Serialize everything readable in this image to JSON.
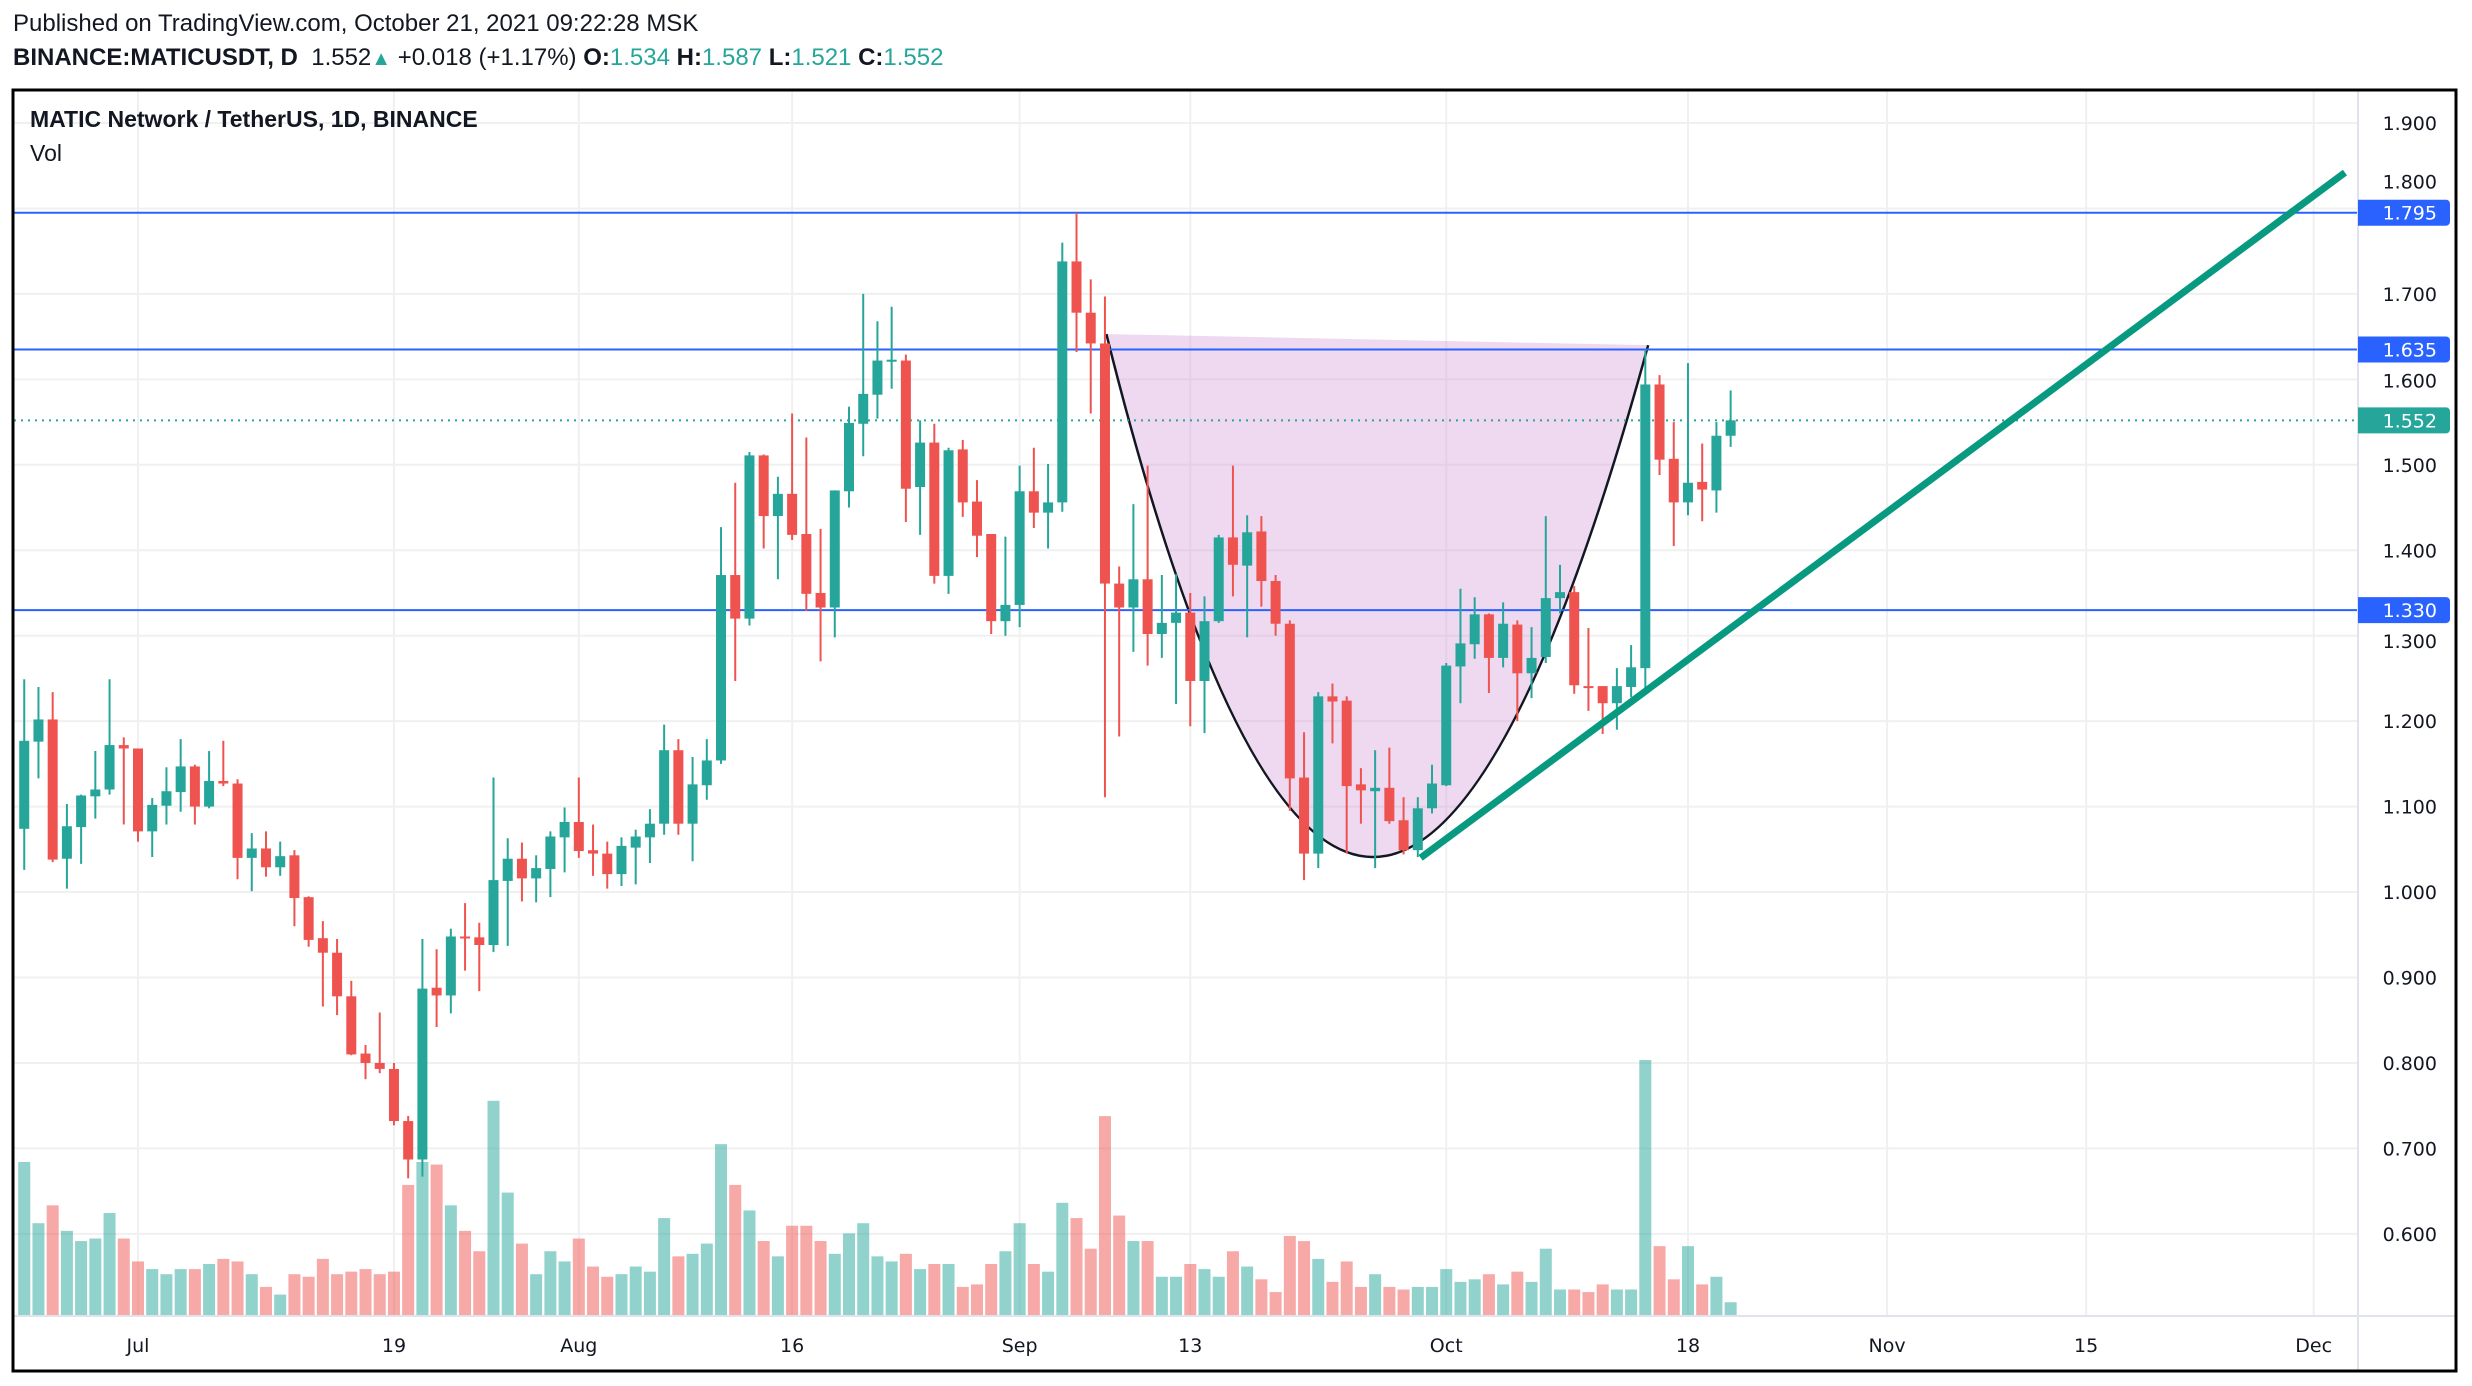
{
  "header": {
    "published": "Published on TradingView.com, October 21, 2021 09:22:28 MSK",
    "symbol": "BINANCE:MATICUSDT, D",
    "last": "1.552",
    "change": "+0.018 (+1.17%)",
    "o_label": "O:",
    "o": "1.534",
    "h_label": "H:",
    "h": "1.587",
    "l_label": "L:",
    "l": "1.521",
    "c_label": "C:",
    "c": "1.552",
    "up_icon": "triangle-up-icon"
  },
  "legend": {
    "title": "MATIC Network / TetherUS, 1D, BINANCE",
    "volume": "Vol"
  },
  "colors": {
    "up": "#26a69a",
    "down": "#ef5350",
    "level": "#2962ff",
    "trendline": "#089981",
    "cup_fill": "#ce93d8",
    "grid": "#f0f0f0"
  },
  "chart_data": {
    "type": "candlestick",
    "title": "MATIC Network / TetherUS, 1D, BINANCE",
    "start_date": "2021-06-23",
    "interval": "1D",
    "columns": [
      "open",
      "high",
      "low",
      "close",
      "volume_relative"
    ],
    "ylim": [
      0.5,
      1.95
    ],
    "y_ticks": [
      "1.900",
      "1.800",
      "1.700",
      "1.600",
      "1.500",
      "1.400",
      "1.300",
      "1.200",
      "1.100",
      "1.000",
      "0.900",
      "0.800",
      "0.700",
      "0.600"
    ],
    "x_ticks": [
      {
        "day": 0,
        "label": "Jul"
      },
      {
        "day": 18,
        "label": "19"
      },
      {
        "day": 31,
        "label": "Aug"
      },
      {
        "day": 46,
        "label": "16"
      },
      {
        "day": 62,
        "label": "Sep"
      },
      {
        "day": 74,
        "label": "13"
      },
      {
        "day": 92,
        "label": "Oct"
      },
      {
        "day": 109,
        "label": "18"
      },
      {
        "day": 123,
        "label": "Nov"
      },
      {
        "day": 137,
        "label": "15"
      },
      {
        "day": 153,
        "label": "Dec"
      }
    ],
    "first_day_offset": -8,
    "candles": [
      [
        1.074,
        1.249,
        1.026,
        1.177,
        60
      ],
      [
        1.176,
        1.24,
        1.133,
        1.202,
        36
      ],
      [
        1.202,
        1.234,
        1.035,
        1.038,
        43
      ],
      [
        1.039,
        1.103,
        1.004,
        1.077,
        33
      ],
      [
        1.076,
        1.114,
        1.033,
        1.113,
        29
      ],
      [
        1.112,
        1.165,
        1.086,
        1.12,
        30
      ],
      [
        1.12,
        1.249,
        1.114,
        1.172,
        40
      ],
      [
        1.172,
        1.181,
        1.079,
        1.168,
        30
      ],
      [
        1.168,
        1.168,
        1.059,
        1.071,
        21
      ],
      [
        1.071,
        1.11,
        1.041,
        1.102,
        18
      ],
      [
        1.101,
        1.146,
        1.079,
        1.118,
        16
      ],
      [
        1.117,
        1.179,
        1.094,
        1.147,
        18
      ],
      [
        1.147,
        1.149,
        1.079,
        1.1,
        18
      ],
      [
        1.1,
        1.165,
        1.098,
        1.13,
        20
      ],
      [
        1.13,
        1.177,
        1.124,
        1.127,
        22
      ],
      [
        1.127,
        1.132,
        1.015,
        1.04,
        21
      ],
      [
        1.04,
        1.069,
        1.001,
        1.051,
        16
      ],
      [
        1.051,
        1.071,
        1.018,
        1.029,
        11
      ],
      [
        1.029,
        1.059,
        1.019,
        1.042,
        8
      ],
      [
        1.043,
        1.049,
        0.96,
        0.993,
        16
      ],
      [
        0.994,
        0.995,
        0.936,
        0.944,
        15
      ],
      [
        0.946,
        0.966,
        0.866,
        0.929,
        22
      ],
      [
        0.929,
        0.945,
        0.856,
        0.878,
        16
      ],
      [
        0.878,
        0.896,
        0.809,
        0.81,
        17
      ],
      [
        0.811,
        0.821,
        0.781,
        0.8,
        18
      ],
      [
        0.8,
        0.859,
        0.788,
        0.793,
        16
      ],
      [
        0.793,
        0.8,
        0.727,
        0.732,
        17
      ],
      [
        0.732,
        0.738,
        0.665,
        0.687,
        51
      ],
      [
        0.687,
        0.945,
        0.667,
        0.887,
        60
      ],
      [
        0.888,
        0.933,
        0.842,
        0.879,
        59
      ],
      [
        0.879,
        0.957,
        0.858,
        0.948,
        43
      ],
      [
        0.948,
        0.987,
        0.908,
        0.947,
        33
      ],
      [
        0.947,
        0.964,
        0.884,
        0.938,
        25
      ],
      [
        0.938,
        1.134,
        0.93,
        1.014,
        84
      ],
      [
        1.013,
        1.063,
        0.937,
        1.039,
        48
      ],
      [
        1.039,
        1.058,
        0.989,
        1.016,
        28
      ],
      [
        1.016,
        1.043,
        0.988,
        1.028,
        16
      ],
      [
        1.027,
        1.071,
        0.994,
        1.065,
        25
      ],
      [
        1.064,
        1.099,
        1.023,
        1.082,
        21
      ],
      [
        1.082,
        1.134,
        1.04,
        1.048,
        30
      ],
      [
        1.049,
        1.079,
        1.019,
        1.045,
        19
      ],
      [
        1.045,
        1.059,
        1.004,
        1.021,
        15
      ],
      [
        1.021,
        1.064,
        1.007,
        1.054,
        16
      ],
      [
        1.052,
        1.073,
        1.009,
        1.065,
        19
      ],
      [
        1.064,
        1.097,
        1.034,
        1.08,
        17
      ],
      [
        1.08,
        1.196,
        1.067,
        1.166,
        38
      ],
      [
        1.166,
        1.179,
        1.067,
        1.08,
        23
      ],
      [
        1.08,
        1.158,
        1.036,
        1.126,
        24
      ],
      [
        1.125,
        1.179,
        1.108,
        1.154,
        28
      ],
      [
        1.154,
        1.427,
        1.15,
        1.371,
        67
      ],
      [
        1.371,
        1.479,
        1.247,
        1.32,
        51
      ],
      [
        1.32,
        1.515,
        1.312,
        1.511,
        41
      ],
      [
        1.511,
        1.512,
        1.402,
        1.44,
        29
      ],
      [
        1.44,
        1.486,
        1.366,
        1.466,
        23
      ],
      [
        1.466,
        1.56,
        1.412,
        1.418,
        35
      ],
      [
        1.419,
        1.532,
        1.329,
        1.349,
        35
      ],
      [
        1.35,
        1.425,
        1.27,
        1.333,
        29
      ],
      [
        1.333,
        1.47,
        1.298,
        1.47,
        24
      ],
      [
        1.469,
        1.568,
        1.45,
        1.549,
        32
      ],
      [
        1.548,
        1.7,
        1.51,
        1.583,
        36
      ],
      [
        1.582,
        1.668,
        1.554,
        1.622,
        23
      ],
      [
        1.622,
        1.685,
        1.589,
        1.623,
        21
      ],
      [
        1.622,
        1.629,
        1.433,
        1.472,
        24
      ],
      [
        1.474,
        1.552,
        1.418,
        1.526,
        18
      ],
      [
        1.526,
        1.548,
        1.361,
        1.37,
        20
      ],
      [
        1.37,
        1.52,
        1.349,
        1.517,
        20
      ],
      [
        1.518,
        1.529,
        1.439,
        1.456,
        11
      ],
      [
        1.457,
        1.482,
        1.392,
        1.417,
        12
      ],
      [
        1.419,
        1.419,
        1.302,
        1.317,
        20
      ],
      [
        1.317,
        1.416,
        1.3,
        1.336,
        25
      ],
      [
        1.336,
        1.499,
        1.31,
        1.469,
        36
      ],
      [
        1.469,
        1.52,
        1.426,
        1.444,
        20
      ],
      [
        1.444,
        1.501,
        1.402,
        1.456,
        17
      ],
      [
        1.456,
        1.76,
        1.445,
        1.738,
        44
      ],
      [
        1.738,
        1.795,
        1.632,
        1.678,
        38
      ],
      [
        1.678,
        1.717,
        1.56,
        1.642,
        26
      ],
      [
        1.642,
        1.697,
        1.111,
        1.361,
        78
      ],
      [
        1.361,
        1.381,
        1.182,
        1.333,
        39
      ],
      [
        1.333,
        1.454,
        1.281,
        1.366,
        29
      ],
      [
        1.366,
        1.499,
        1.265,
        1.302,
        29
      ],
      [
        1.302,
        1.371,
        1.274,
        1.315,
        15
      ],
      [
        1.315,
        1.372,
        1.22,
        1.327,
        15
      ],
      [
        1.327,
        1.35,
        1.194,
        1.247,
        20
      ],
      [
        1.247,
        1.346,
        1.186,
        1.317,
        18
      ],
      [
        1.317,
        1.418,
        1.315,
        1.415,
        15
      ],
      [
        1.415,
        1.499,
        1.346,
        1.383,
        25
      ],
      [
        1.382,
        1.441,
        1.298,
        1.421,
        19
      ],
      [
        1.422,
        1.44,
        1.334,
        1.364,
        14
      ],
      [
        1.364,
        1.371,
        1.3,
        1.314,
        9
      ],
      [
        1.314,
        1.318,
        1.095,
        1.133,
        31
      ],
      [
        1.134,
        1.187,
        1.014,
        1.045,
        29
      ],
      [
        1.045,
        1.234,
        1.028,
        1.229,
        22
      ],
      [
        1.229,
        1.244,
        1.174,
        1.223,
        13
      ],
      [
        1.224,
        1.229,
        1.045,
        1.124,
        21
      ],
      [
        1.126,
        1.145,
        1.08,
        1.119,
        11
      ],
      [
        1.118,
        1.166,
        1.028,
        1.122,
        16
      ],
      [
        1.122,
        1.169,
        1.08,
        1.083,
        11
      ],
      [
        1.084,
        1.111,
        1.044,
        1.049,
        10
      ],
      [
        1.049,
        1.111,
        1.041,
        1.098,
        11
      ],
      [
        1.098,
        1.149,
        1.092,
        1.127,
        11
      ],
      [
        1.125,
        1.268,
        1.124,
        1.265,
        18
      ],
      [
        1.264,
        1.355,
        1.221,
        1.291,
        13
      ],
      [
        1.29,
        1.345,
        1.273,
        1.325,
        14
      ],
      [
        1.325,
        1.326,
        1.233,
        1.274,
        16
      ],
      [
        1.274,
        1.339,
        1.263,
        1.314,
        12
      ],
      [
        1.313,
        1.318,
        1.2,
        1.256,
        17
      ],
      [
        1.256,
        1.31,
        1.227,
        1.274,
        13
      ],
      [
        1.275,
        1.44,
        1.268,
        1.344,
        26
      ],
      [
        1.344,
        1.383,
        1.326,
        1.351,
        10
      ],
      [
        1.351,
        1.358,
        1.232,
        1.242,
        10
      ],
      [
        1.241,
        1.309,
        1.212,
        1.24,
        9
      ],
      [
        1.241,
        1.241,
        1.185,
        1.221,
        12
      ],
      [
        1.221,
        1.262,
        1.19,
        1.241,
        10
      ],
      [
        1.24,
        1.289,
        1.228,
        1.263,
        10
      ],
      [
        1.262,
        1.635,
        1.233,
        1.594,
        100
      ],
      [
        1.594,
        1.605,
        1.488,
        1.506,
        27
      ],
      [
        1.507,
        1.55,
        1.405,
        1.456,
        14
      ],
      [
        1.456,
        1.619,
        1.441,
        1.479,
        27
      ],
      [
        1.48,
        1.525,
        1.434,
        1.471,
        12
      ],
      [
        1.47,
        1.55,
        1.444,
        1.534,
        15
      ],
      [
        1.534,
        1.587,
        1.521,
        1.552,
        5
      ]
    ],
    "levels": [
      {
        "price": 1.795,
        "label": "1.795"
      },
      {
        "price": 1.635,
        "label": "1.635"
      },
      {
        "price": 1.33,
        "label": "1.330"
      }
    ],
    "last_price": {
      "price": 1.552,
      "label": "1.552"
    },
    "annotations": {
      "trendline": {
        "from": {
          "day": 90.2,
          "price": 1.04
        },
        "to": {
          "day": 155.2,
          "price": 1.842
        }
      },
      "cup": {
        "start": {
          "day": 68.1,
          "price": 1.653
        },
        "control": {
          "day": 86.35,
          "price": 0.4355
        },
        "end": {
          "day": 106.2,
          "price": 1.64
        }
      }
    },
    "grid": true,
    "legend_position": "top-left"
  }
}
